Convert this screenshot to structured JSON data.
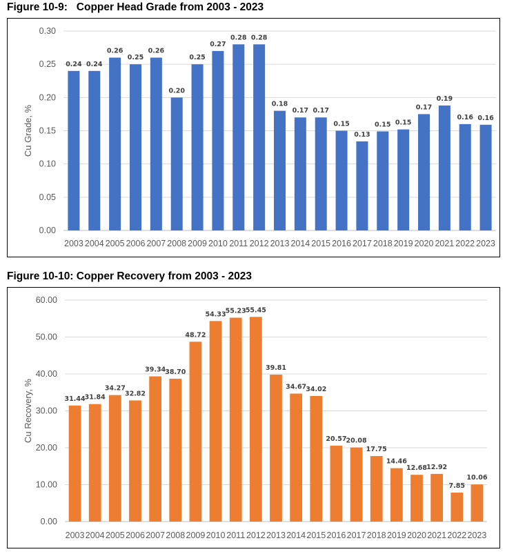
{
  "chart_data": [
    {
      "type": "bar",
      "figure_label": "Figure 10-9:",
      "title": "Copper Head Grade from 2003 - 2023",
      "xlabel": "",
      "ylabel": "Cu Grade, %",
      "ylim": [
        0,
        0.3
      ],
      "ytick_values": [
        0,
        0.05,
        0.1,
        0.15,
        0.2,
        0.25,
        0.3
      ],
      "ytick_labels": [
        "0.00",
        "0.05",
        "0.10",
        "0.15",
        "0.20",
        "0.25",
        "0.30"
      ],
      "color": "#4472C4",
      "categories": [
        "2003",
        "2004",
        "2005",
        "2006",
        "2007",
        "2008",
        "2009",
        "2010",
        "2011",
        "2012",
        "2013",
        "2014",
        "2015",
        "2016",
        "2017",
        "2018",
        "2019",
        "2020",
        "2021",
        "2022",
        "2023"
      ],
      "values": [
        0.24,
        0.24,
        0.26,
        0.25,
        0.26,
        0.2,
        0.25,
        0.27,
        0.28,
        0.28,
        0.18,
        0.17,
        0.17,
        0.15,
        0.134,
        0.149,
        0.152,
        0.175,
        0.188,
        0.16,
        0.159
      ],
      "data_labels": [
        "0.24",
        "0.24",
        "0.26",
        "0.25",
        "0.26",
        "0.20",
        "0.25",
        "0.27",
        "0.28",
        "0.28",
        "0.18",
        "0.17",
        "0.17",
        "0.15",
        "0.13",
        "0.15",
        "0.15",
        "0.17",
        "0.19",
        "0.16",
        "0.16"
      ],
      "grid": true
    },
    {
      "type": "bar",
      "figure_label": "Figure 10-10:",
      "title": "Copper Recovery from 2003 - 2023",
      "xlabel": "",
      "ylabel": "Cu Recovery, %",
      "ylim": [
        0,
        60
      ],
      "ytick_values": [
        0,
        10,
        20,
        30,
        40,
        50,
        60
      ],
      "ytick_labels": [
        "0.00",
        "10.00",
        "20.00",
        "30.00",
        "40.00",
        "50.00",
        "60.00"
      ],
      "color": "#ED7D31",
      "categories": [
        "2003",
        "2004",
        "2005",
        "2006",
        "2007",
        "2008",
        "2009",
        "2010",
        "2011",
        "2012",
        "2013",
        "2014",
        "2015",
        "2016",
        "2017",
        "2018",
        "2019",
        "2020",
        "2021",
        "2022",
        "2023"
      ],
      "values": [
        31.44,
        31.84,
        34.27,
        32.82,
        39.34,
        38.7,
        48.72,
        54.33,
        55.23,
        55.45,
        39.81,
        34.67,
        34.02,
        20.57,
        20.08,
        17.75,
        14.46,
        12.68,
        12.92,
        7.85,
        10.06
      ],
      "data_labels": [
        "31.44",
        "31.84",
        "34.27",
        "32.82",
        "39.34",
        "38.70",
        "48.72",
        "54.33",
        "55.23",
        "55.45",
        "39.81",
        "34.67",
        "34.02",
        "20.57",
        "20.08",
        "17.75",
        "14.46",
        "12.68",
        "12.92",
        "7.85",
        "10.06"
      ],
      "grid": true
    }
  ]
}
